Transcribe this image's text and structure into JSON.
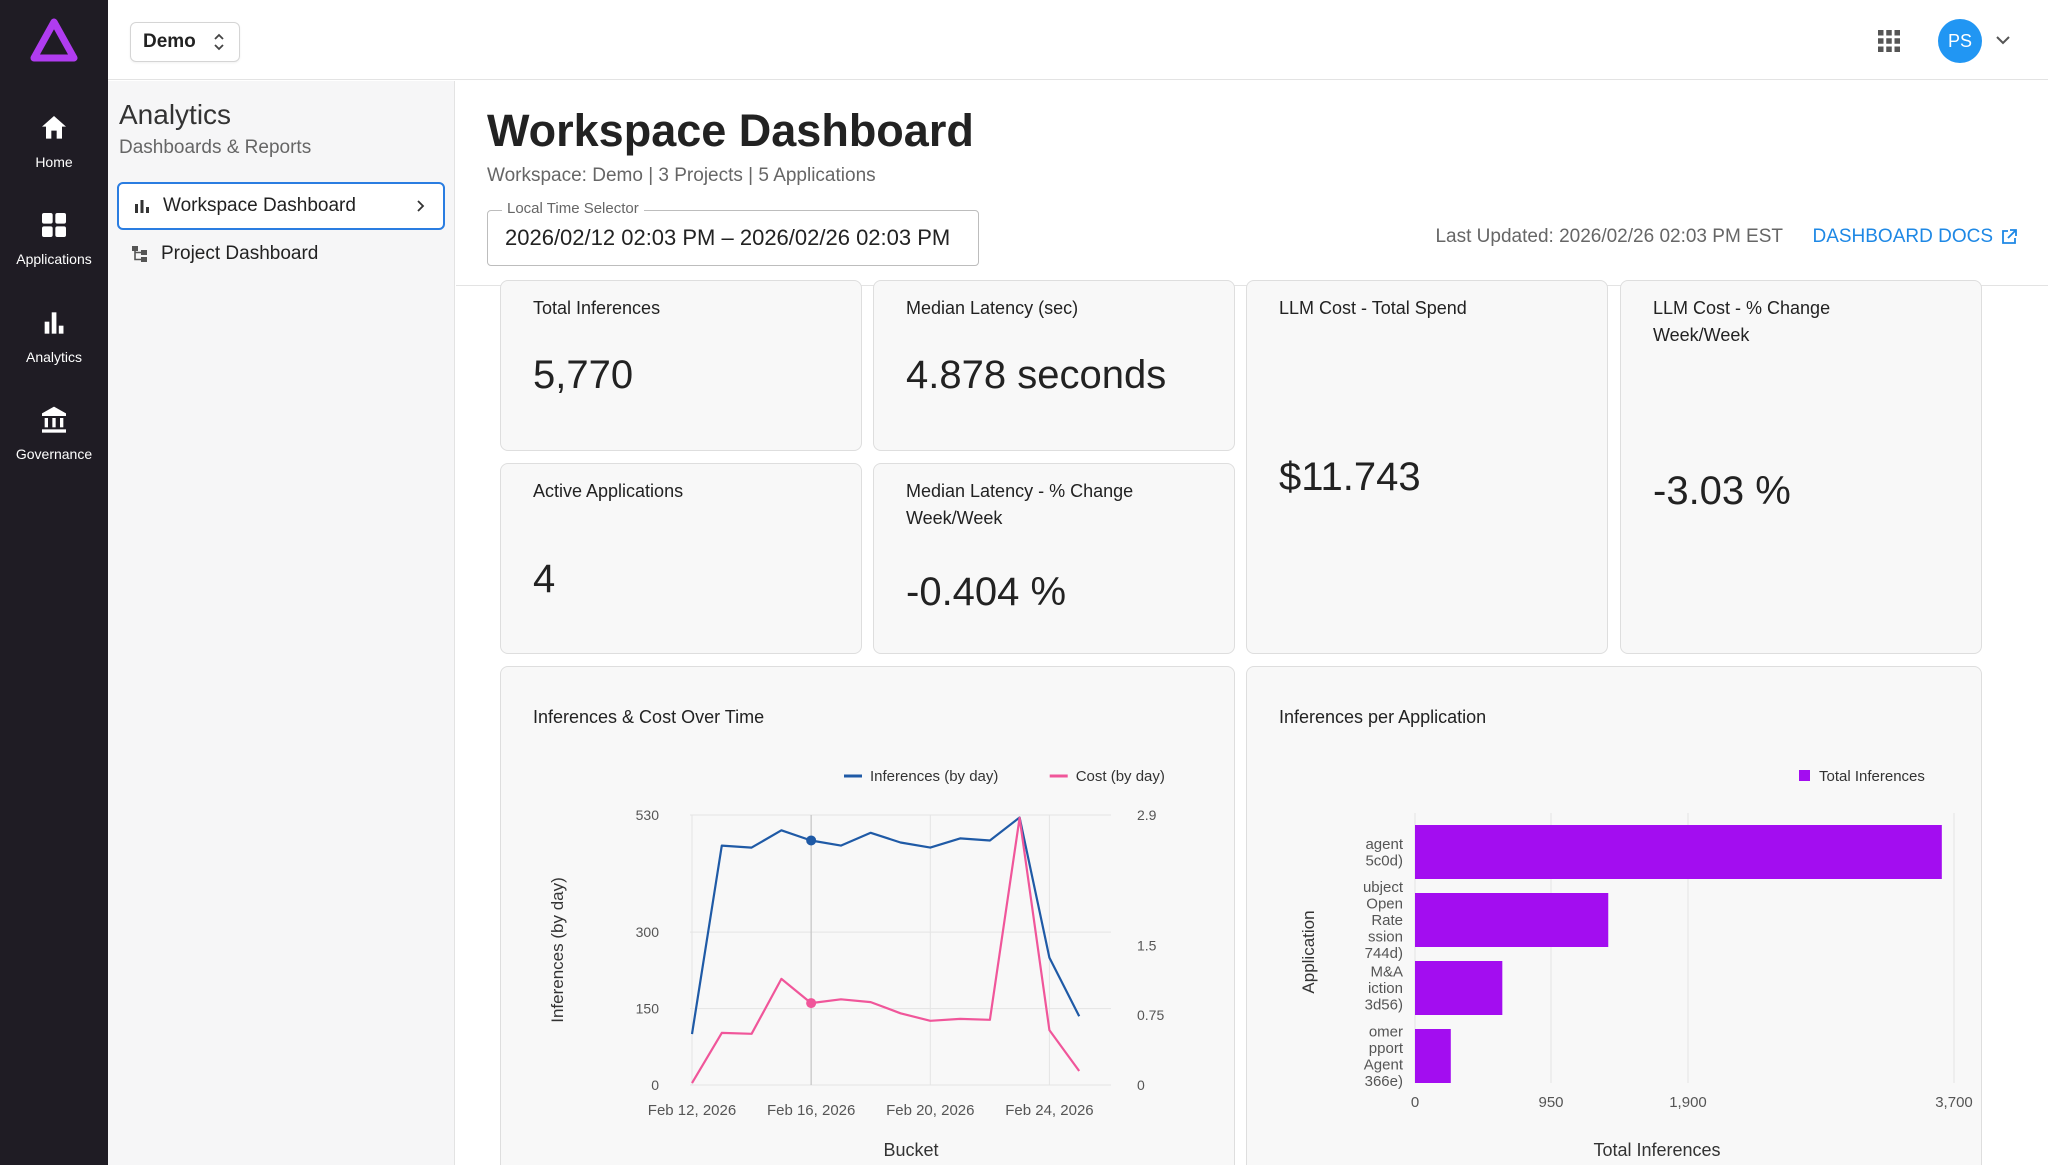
{
  "rail": {
    "items": [
      {
        "label": "Home",
        "icon": "home-icon"
      },
      {
        "label": "Applications",
        "icon": "grid-icon"
      },
      {
        "label": "Analytics",
        "icon": "bar-chart-icon"
      },
      {
        "label": "Governance",
        "icon": "bank-icon"
      }
    ],
    "logo_color": "#b03cf0"
  },
  "topbar": {
    "workspace": "Demo",
    "avatar_initials": "PS",
    "avatar_color": "#2196f3"
  },
  "subnav": {
    "title": "Analytics",
    "subtitle": "Dashboards & Reports",
    "items": [
      {
        "label": "Workspace Dashboard",
        "active": true
      },
      {
        "label": "Project Dashboard",
        "active": false
      }
    ]
  },
  "header": {
    "title": "Workspace Dashboard",
    "subtitle": "Workspace: Demo | 3 Projects | 5 Applications",
    "time_selector_label": "Local Time Selector",
    "time_selector_value": "2026/02/12 02:03 PM – 2026/02/26 02:03 PM",
    "last_updated": "Last Updated: 2026/02/26 02:03 PM EST",
    "docs_link": "DASHBOARD DOCS"
  },
  "metrics": {
    "total_inferences": {
      "label": "Total Inferences",
      "value": "5,770"
    },
    "median_latency": {
      "label": "Median Latency (sec)",
      "value": "4.878 seconds"
    },
    "llm_cost_total": {
      "label": "LLM Cost - Total Spend",
      "value": "$11.743"
    },
    "llm_cost_change": {
      "label": "LLM Cost - % Change Week/Week",
      "value": "-3.03 %"
    },
    "active_apps": {
      "label": "Active Applications",
      "value": "4"
    },
    "latency_change": {
      "label": "Median Latency - % Change Week/Week",
      "value": "-0.404 %"
    }
  },
  "chart_data": [
    {
      "type": "line",
      "title": "Inferences & Cost Over Time",
      "xlabel": "Bucket",
      "ylabel": "Inferences (by day)",
      "x": [
        "Feb 12, 2026",
        "Feb 13, 2026",
        "Feb 14, 2026",
        "Feb 15, 2026",
        "Feb 16, 2026",
        "Feb 17, 2026",
        "Feb 18, 2026",
        "Feb 19, 2026",
        "Feb 20, 2026",
        "Feb 21, 2026",
        "Feb 22, 2026",
        "Feb 23, 2026",
        "Feb 24, 2026",
        "Feb 25, 2026",
        "Feb 26, 2026"
      ],
      "x_ticks": [
        "Feb 12, 2026",
        "Feb 16, 2026",
        "Feb 20, 2026",
        "Feb 24, 2026"
      ],
      "y_ticks": [
        "0",
        "150",
        "300",
        "530"
      ],
      "ylim": [
        0,
        530
      ],
      "y2_ticks": [
        "0",
        "0.75",
        "1.5",
        "2.9"
      ],
      "y2lim": [
        0,
        2.9
      ],
      "grid": true,
      "legend": "top-right",
      "series": [
        {
          "name": "Inferences (by day)",
          "axis": "left",
          "color": "#1f5aa6",
          "values": [
            100,
            470,
            466,
            500,
            480,
            470,
            495,
            476,
            466,
            484,
            480,
            525,
            250,
            135,
            null
          ]
        },
        {
          "name": "Cost (by day)",
          "axis": "right",
          "color": "#f0569a",
          "values": [
            0.02,
            0.56,
            0.55,
            1.14,
            0.88,
            0.92,
            0.89,
            0.77,
            0.69,
            0.71,
            0.7,
            2.87,
            0.59,
            0.15,
            null
          ]
        }
      ],
      "highlight_index": 4
    },
    {
      "type": "bar",
      "orientation": "horizontal",
      "title": "Inferences per Application",
      "xlabel": "Total Inferences",
      "ylabel": "Application",
      "legend": "top-right",
      "categories": [
        [
          "agent",
          "5c0d)"
        ],
        [
          "ubject",
          "Open",
          "Rate",
          "ssion",
          "744d)"
        ],
        [
          "M&A",
          "iction",
          "3d56)"
        ],
        [
          "omer",
          "pport",
          "Agent",
          "366e)"
        ]
      ],
      "series": [
        {
          "name": "Total Inferences",
          "color": "#a30df0",
          "values": [
            3680,
            1350,
            610,
            250
          ]
        }
      ],
      "x_ticks": [
        "0",
        "950",
        "1,900",
        "3,700"
      ],
      "grid": true
    }
  ]
}
